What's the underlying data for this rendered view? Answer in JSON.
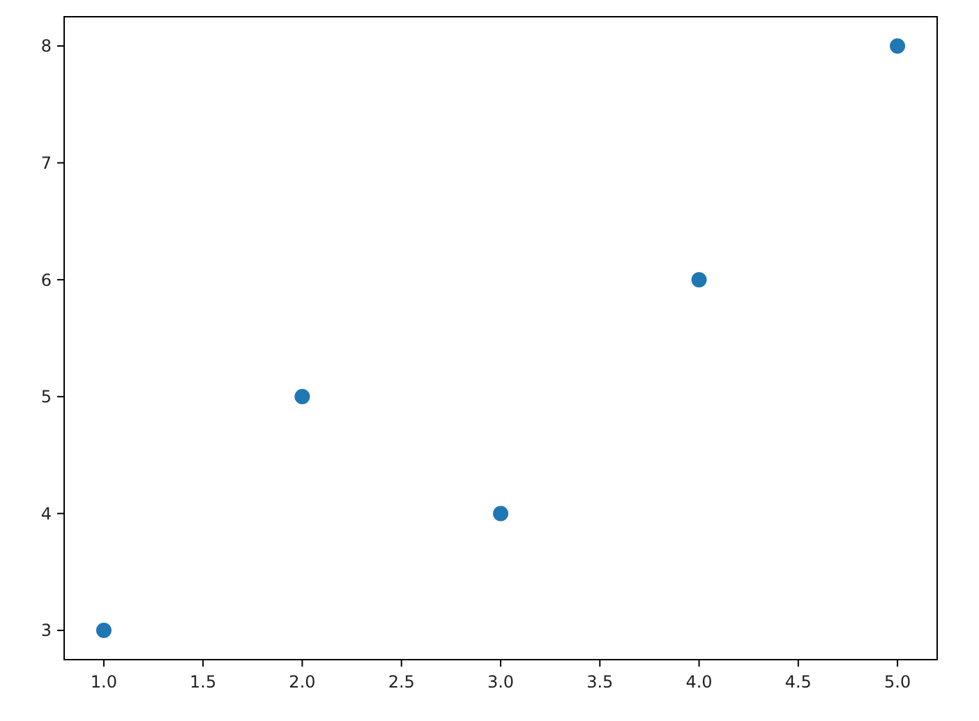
{
  "chart_data": {
    "type": "scatter",
    "x": [
      1,
      2,
      3,
      4,
      5
    ],
    "values": [
      3,
      5,
      4,
      6,
      8
    ],
    "color": "#1f77b4",
    "marker": "circle",
    "xlim": [
      0.8,
      5.2
    ],
    "xticks": [
      {
        "value": 1,
        "label": "1.0"
      },
      {
        "value": 1.5,
        "label": "1.5"
      },
      {
        "value": 2,
        "label": "2.0"
      },
      {
        "value": 2.5,
        "label": "2.5"
      },
      {
        "value": 3,
        "label": "3.0"
      },
      {
        "value": 3.5,
        "label": "3.5"
      },
      {
        "value": 4,
        "label": "4.0"
      },
      {
        "value": 4.5,
        "label": "4.5"
      },
      {
        "value": 5,
        "label": "5.0"
      }
    ],
    "ylim": [
      2.75,
      8.25
    ],
    "yticks": [
      3,
      4,
      5,
      6,
      7,
      8
    ]
  }
}
